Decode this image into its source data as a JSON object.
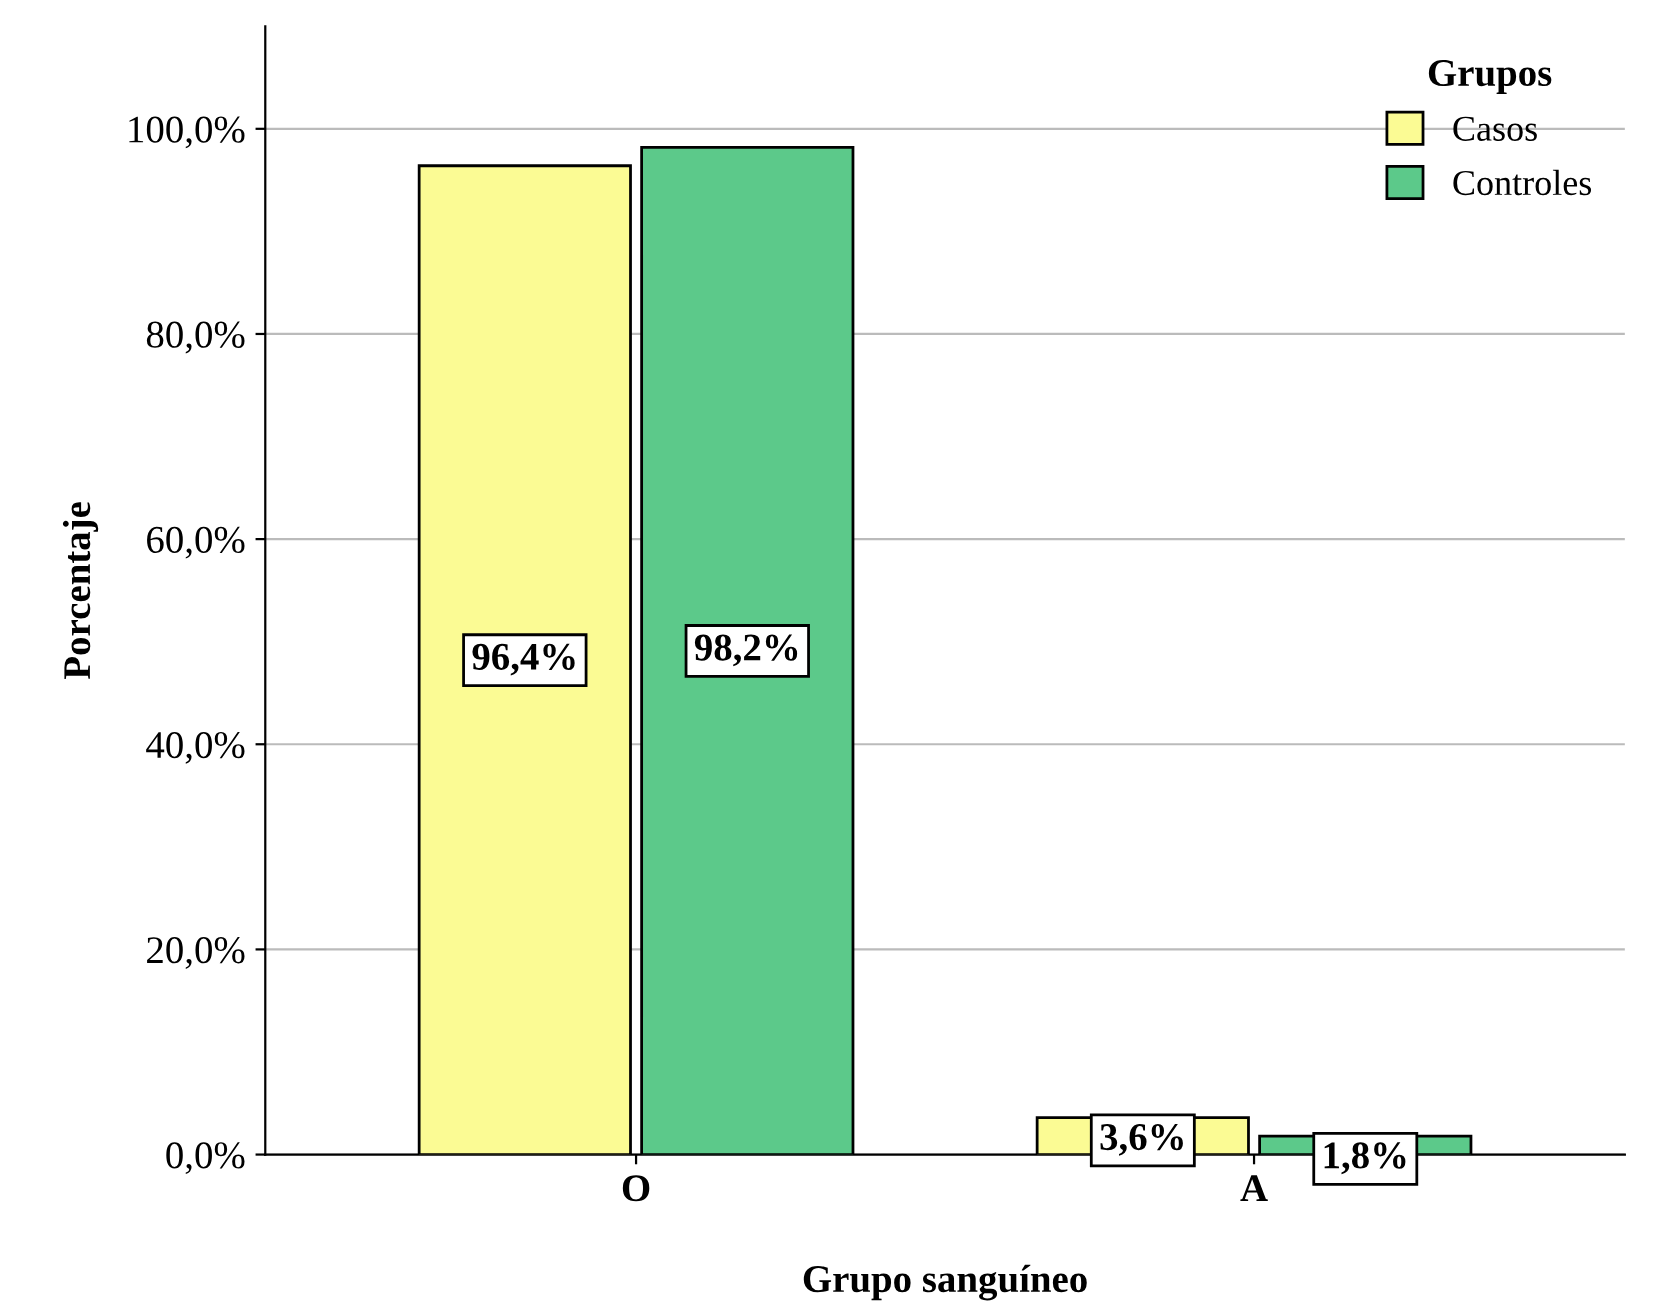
{
  "chart_data": {
    "type": "bar",
    "xlabel": "Grupo sanguíneo",
    "ylabel": "Porcentaje",
    "legend_title": "Grupos",
    "legend": "top right",
    "grid": "y",
    "categories": [
      "O",
      "A"
    ],
    "series": [
      {
        "name": "Casos",
        "color": "#fbfb94",
        "values": [
          96.4,
          3.6
        ],
        "value_labels": [
          "96,4%",
          "3,6%"
        ]
      },
      {
        "name": "Controles",
        "color": "#5cc98a",
        "values": [
          98.2,
          1.8
        ],
        "value_labels": [
          "98,2%",
          "1,8%"
        ]
      }
    ],
    "ylim": [
      0,
      110
    ],
    "yticks": [
      {
        "value": 0,
        "label": "0,0%"
      },
      {
        "value": 20,
        "label": "20,0%"
      },
      {
        "value": 40,
        "label": "40,0%"
      },
      {
        "value": 60,
        "label": "60,0%"
      },
      {
        "value": 80,
        "label": "80,0%"
      },
      {
        "value": 100,
        "label": "100,0%"
      }
    ]
  }
}
